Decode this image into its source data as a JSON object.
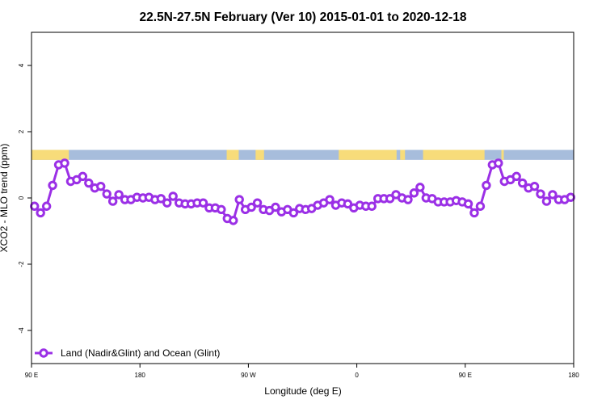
{
  "chart_data": {
    "type": "line",
    "title": "22.5N-27.5N February (Ver 10)   2015-01-01 to 2020-12-18",
    "xlabel": "Longitude (deg E)",
    "ylabel": "XCO2 - MLO trend (ppm)",
    "xlim": [
      90,
      540
    ],
    "ylim": [
      -5,
      5
    ],
    "x_ticks": [
      {
        "value": 90,
        "label": "90 E"
      },
      {
        "value": 180,
        "label": "180"
      },
      {
        "value": 270,
        "label": "90 W"
      },
      {
        "value": 360,
        "label": "0"
      },
      {
        "value": 450,
        "label": "90 E"
      },
      {
        "value": 540,
        "label": "180"
      }
    ],
    "y_ticks": [
      {
        "value": -4,
        "label": "-4"
      },
      {
        "value": -2,
        "label": "-2"
      },
      {
        "value": 0,
        "label": "0"
      },
      {
        "value": 2,
        "label": "2"
      },
      {
        "value": 4,
        "label": "4"
      }
    ],
    "grid": false,
    "legend_position": "bottom-left",
    "land_ocean_band": {
      "y_range": [
        1.15,
        1.45
      ],
      "ocean_color": "#a7bddc",
      "land_color": "#f7dc7a",
      "land_segments": [
        [
          90,
          121
        ],
        [
          252,
          262
        ],
        [
          276,
          283
        ],
        [
          345,
          393
        ],
        [
          396,
          400
        ],
        [
          415,
          466
        ],
        [
          480,
          482
        ]
      ]
    },
    "series": [
      {
        "name": "Land (Nadir&Glint) and Ocean (Glint)",
        "color": "#9b30e6",
        "x": [
          92.5,
          97.5,
          102.5,
          107.5,
          112.5,
          117.5,
          122.5,
          127.5,
          132.5,
          137.5,
          142.5,
          147.5,
          152.5,
          157.5,
          162.5,
          167.5,
          172.5,
          177.5,
          182.5,
          187.5,
          192.5,
          197.5,
          202.5,
          207.5,
          212.5,
          217.5,
          222.5,
          227.5,
          232.5,
          237.5,
          242.5,
          247.5,
          252.5,
          257.5,
          262.5,
          267.5,
          272.5,
          277.5,
          282.5,
          287.5,
          292.5,
          297.5,
          302.5,
          307.5,
          312.5,
          317.5,
          322.5,
          327.5,
          332.5,
          337.5,
          342.5,
          347.5,
          352.5,
          357.5,
          362.5,
          367.5,
          372.5,
          377.5,
          382.5,
          387.5,
          392.5,
          397.5,
          402.5,
          407.5,
          412.5,
          417.5,
          422.5,
          427.5,
          432.5,
          437.5,
          442.5,
          447.5,
          452.5,
          457.5,
          462.5,
          467.5,
          472.5,
          477.5,
          482.5,
          487.5,
          492.5,
          497.5,
          502.5,
          507.5,
          512.5,
          517.5,
          522.5,
          527.5,
          532.5,
          537.5
        ],
        "y": [
          -0.25,
          -0.45,
          -0.25,
          0.38,
          1.0,
          1.05,
          0.5,
          0.55,
          0.65,
          0.45,
          0.3,
          0.35,
          0.12,
          -0.1,
          0.1,
          -0.05,
          -0.05,
          0.02,
          0.0,
          0.02,
          -0.05,
          -0.02,
          -0.15,
          0.05,
          -0.15,
          -0.18,
          -0.18,
          -0.15,
          -0.15,
          -0.3,
          -0.3,
          -0.35,
          -0.62,
          -0.68,
          -0.05,
          -0.35,
          -0.28,
          -0.15,
          -0.35,
          -0.38,
          -0.28,
          -0.42,
          -0.35,
          -0.45,
          -0.32,
          -0.35,
          -0.32,
          -0.22,
          -0.15,
          -0.05,
          -0.22,
          -0.15,
          -0.18,
          -0.3,
          -0.22,
          -0.25,
          -0.25,
          -0.02,
          -0.02,
          -0.02,
          0.1,
          0.0,
          -0.05,
          0.15,
          0.32,
          0.0,
          -0.02,
          -0.12,
          -0.12,
          -0.12,
          -0.08,
          -0.12,
          -0.18,
          -0.45,
          -0.25,
          0.38,
          1.0,
          1.05,
          0.5,
          0.55,
          0.65,
          0.45,
          0.3,
          0.35,
          0.12,
          -0.1,
          0.1,
          -0.05,
          -0.05,
          0.02
        ]
      }
    ]
  }
}
